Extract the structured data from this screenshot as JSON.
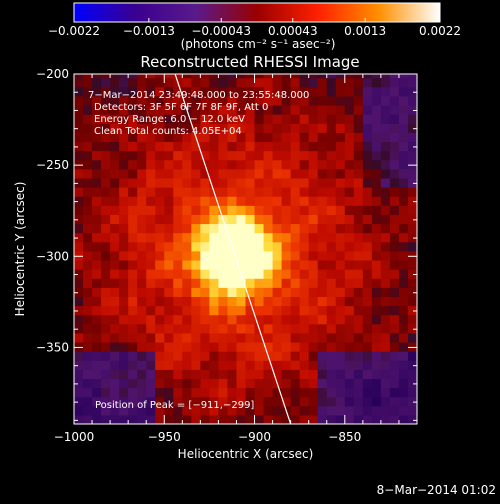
{
  "chart_data": {
    "type": "heatmap",
    "title": "Reconstructed RHESSI Image",
    "xlabel": "Heliocentric X (arcsec)",
    "ylabel": "Heliocentric Y (arcsec)",
    "xlim": [
      -1000,
      -810
    ],
    "ylim": [
      -392,
      -200
    ],
    "xticks": [
      -1000,
      -950,
      -900,
      -850
    ],
    "xtick_labels": [
      "−1000",
      "−950",
      "−900",
      "−850"
    ],
    "yticks": [
      -200,
      -250,
      -300,
      -350
    ],
    "ytick_labels": [
      "−200",
      "−250",
      "−300",
      "−350"
    ],
    "colorbar": {
      "range": [
        -0.0022,
        0.0022
      ],
      "tick_values": [
        -0.0022,
        -0.0013,
        -0.00043,
        0.00043,
        0.0013,
        0.0022
      ],
      "tick_labels": [
        "−0.0022",
        "−0.0013",
        "−0.00043",
        "0.00043",
        "0.0013",
        "0.0022"
      ],
      "unit_label": "(photons cm⁻² s⁻¹ asec⁻²)",
      "colors": [
        "#0000ff",
        "#3a0090",
        "#5a1a8a",
        "#9a0000",
        "#ff2000",
        "#ff9000",
        "#ffffff"
      ]
    },
    "peak": {
      "x": -911,
      "y": -299
    },
    "limb_line": {
      "x1": -944,
      "y1": -200,
      "x2": -880,
      "y2": -392
    },
    "info_lines": [
      "7−Mar−2014 23:49:48.000 to 23:55:48.000",
      "Detectors: 3F 5F 6F 7F 8F 9F, Att 0",
      "Energy Range: 6.0 − 12.0 keV",
      "Clean     Total counts: 4.05E+04"
    ],
    "peak_text": "Position of Peak = [−911,−299]",
    "footer_timestamp": "8−Mar−2014 01:02"
  }
}
